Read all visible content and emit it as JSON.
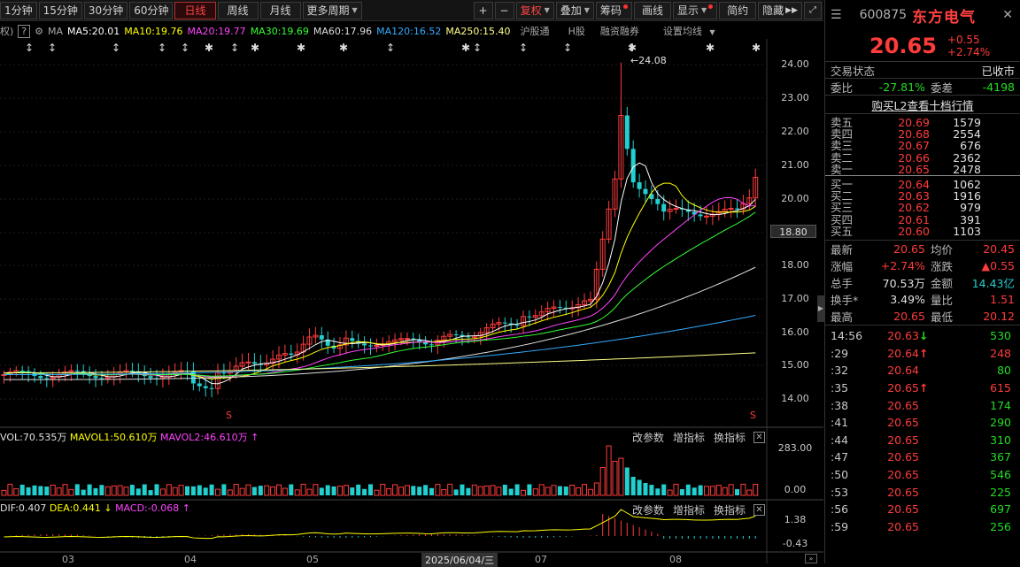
{
  "toolbar": {
    "periods": [
      "1分钟",
      "15分钟",
      "30分钟",
      "60分钟",
      "日线",
      "周线",
      "月线",
      "更多周期"
    ],
    "active_period": "日线",
    "right_buttons": {
      "plus": "+",
      "minus": "−",
      "fuquan": "复权",
      "diejia": "叠加",
      "chouma": "筹码",
      "huaxian": "画线",
      "xianshi": "显示",
      "jianyue": "简约",
      "yincang": "隐藏"
    }
  },
  "ma_bar": {
    "prefix": "权)",
    "help": "?",
    "ma": "MA",
    "ma5": "MA5:20.01",
    "ma10": "MA10:19.76",
    "ma20": "MA20:19.77",
    "ma30": "MA30:19.69",
    "ma60": "MA60:17.96",
    "ma120": "MA120:16.52",
    "ma250": "MA250:15.40",
    "hugutong": "沪股通",
    "hgu": "H股",
    "rongzi": "融资融券",
    "setting": "设置均线"
  },
  "colors": {
    "up": "#ff3b3b",
    "down": "#22d0d0",
    "ma5": "#ffffff",
    "ma10": "#ffff00",
    "ma20": "#ff00ff",
    "ma30": "#00ff00",
    "ma60": "#dddddd",
    "ma120": "#2aa0ff",
    "ma250": "#ffff66"
  },
  "price_axis": [
    "24.00",
    "23.00",
    "22.00",
    "21.00",
    "20.00",
    "18.80",
    "18.00",
    "17.00",
    "16.00",
    "15.00",
    "14.00"
  ],
  "current_price_tag": "18.80",
  "high_marker": "24.08",
  "vol_bar": {
    "vol": "VOL:70.535万",
    "mavol1": "MAVOL1:50.610万",
    "mavol2": "MAVOL2:46.610万",
    "gai": "改参数",
    "add": "增指标",
    "swap": "换指标",
    "axis_top": "283.00",
    "axis_bottom": "0.00"
  },
  "macd_bar": {
    "dif": "DIF:0.407",
    "dea": "DEA:0.441",
    "macd": "MACD:-0.068",
    "gai": "改参数",
    "add": "增指标",
    "swap": "换指标",
    "axis_top": "1.38",
    "axis_bottom": "-0.43"
  },
  "xaxis": {
    "months": [
      "03",
      "04",
      "05",
      "07",
      "08"
    ],
    "cursor_date": "2025/06/04/三"
  },
  "right_panel": {
    "code": "600875",
    "name": "东方电气",
    "price": "20.65",
    "change": "+0.55",
    "change_pct": "+2.74%",
    "trade_status_label": "交易状态",
    "trade_status": "已收市",
    "weibi_label": "委比",
    "weibi": "-27.81%",
    "weicha_label": "委差",
    "weicha": "-4198",
    "l2_link": "购买L2查看十档行情",
    "asks": [
      {
        "label": "卖五",
        "price": "20.69",
        "vol": "1579"
      },
      {
        "label": "卖四",
        "price": "20.68",
        "vol": "2554"
      },
      {
        "label": "卖三",
        "price": "20.67",
        "vol": "676"
      },
      {
        "label": "卖二",
        "price": "20.66",
        "vol": "2362"
      },
      {
        "label": "卖一",
        "price": "20.65",
        "vol": "2478"
      }
    ],
    "bids": [
      {
        "label": "买一",
        "price": "20.64",
        "vol": "1062"
      },
      {
        "label": "买二",
        "price": "20.63",
        "vol": "1916"
      },
      {
        "label": "买三",
        "price": "20.62",
        "vol": "979"
      },
      {
        "label": "买四",
        "price": "20.61",
        "vol": "391"
      },
      {
        "label": "买五",
        "price": "20.60",
        "vol": "1103"
      }
    ],
    "stats": [
      {
        "l1": "最新",
        "v1": "20.65",
        "l2": "均价",
        "v2": "20.45"
      },
      {
        "l1": "涨幅",
        "v1": "+2.74%",
        "l2": "涨跌",
        "v2": "▲0.55"
      },
      {
        "l1": "总手",
        "v1": "70.53万",
        "l2": "金额",
        "v2": "14.43亿"
      },
      {
        "l1": "换手*",
        "v1": "3.49%",
        "l2": "量比",
        "v2": "1.51"
      },
      {
        "l1": "最高",
        "v1": "20.65",
        "l2": "最低",
        "v2": "20.12"
      }
    ],
    "ticks": [
      {
        "t": "14:56",
        "p": "20.63",
        "a": "↓",
        "v": "530"
      },
      {
        "t": ":29",
        "p": "20.64",
        "a": "↑",
        "v": "248"
      },
      {
        "t": ":32",
        "p": "20.64",
        "a": "",
        "v": "80"
      },
      {
        "t": ":35",
        "p": "20.65",
        "a": "↑",
        "v": "615"
      },
      {
        "t": ":38",
        "p": "20.65",
        "a": "",
        "v": "174"
      },
      {
        "t": ":41",
        "p": "20.65",
        "a": "",
        "v": "290"
      },
      {
        "t": ":44",
        "p": "20.65",
        "a": "",
        "v": "310"
      },
      {
        "t": ":47",
        "p": "20.65",
        "a": "",
        "v": "367"
      },
      {
        "t": ":50",
        "p": "20.65",
        "a": "",
        "v": "546"
      },
      {
        "t": ":53",
        "p": "20.65",
        "a": "",
        "v": "225"
      },
      {
        "t": ":56",
        "p": "20.65",
        "a": "",
        "v": "697"
      },
      {
        "t": ":59",
        "p": "20.65",
        "a": "",
        "v": "256"
      }
    ]
  }
}
